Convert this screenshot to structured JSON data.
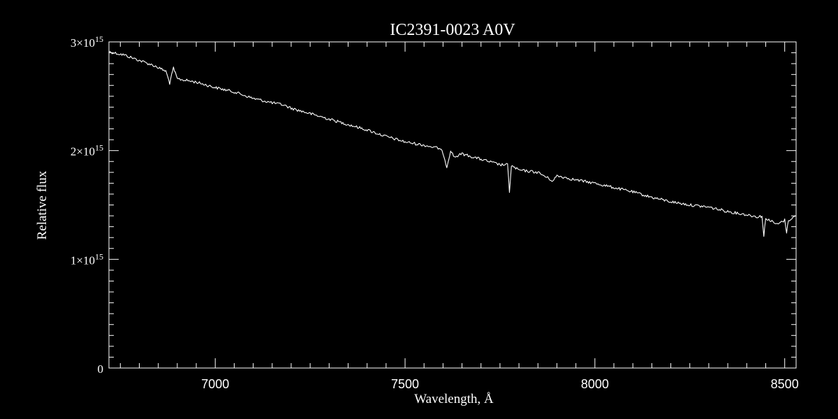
{
  "chart_data": {
    "type": "line",
    "title": "IC2391-0023  A0V",
    "xlabel": "Wavelength, Å",
    "ylabel": "Relative flux",
    "xlim": [
      6720,
      8530
    ],
    "ylim": [
      0,
      3000000000000000.0
    ],
    "xticks": [
      {
        "value": 7000,
        "label": "7000"
      },
      {
        "value": 7500,
        "label": "7500"
      },
      {
        "value": 8000,
        "label": "8000"
      },
      {
        "value": 8500,
        "label": "8500"
      }
    ],
    "yticks": [
      {
        "value": 0,
        "label": "0",
        "mantissa": "",
        "exponent": ""
      },
      {
        "value": 1000000000000000.0,
        "label": "1×10^15",
        "mantissa": "1×10",
        "exponent": "15"
      },
      {
        "value": 2000000000000000.0,
        "label": "2×10^15",
        "mantissa": "2×10",
        "exponent": "15"
      },
      {
        "value": 3000000000000000.0,
        "label": "3×10^15",
        "mantissa": "3×10",
        "exponent": "15"
      }
    ],
    "series": [
      {
        "color": "#ffffff",
        "x": [
          6720,
          6760,
          6800,
          6840,
          6870,
          6880,
          6890,
          6900,
          6950,
          7000,
          7050,
          7100,
          7150,
          7180,
          7200,
          7250,
          7300,
          7350,
          7400,
          7450,
          7500,
          7550,
          7590,
          7600,
          7610,
          7620,
          7630,
          7650,
          7700,
          7750,
          7770,
          7775,
          7780,
          7800,
          7850,
          7890,
          7900,
          7950,
          8000,
          8050,
          8100,
          8150,
          8200,
          8250,
          8300,
          8350,
          8400,
          8430,
          8440,
          8445,
          8450,
          8480,
          8500,
          8505,
          8510,
          8530
        ],
        "y": [
          2910000000000000.0,
          2880000000000000.0,
          2830000000000000.0,
          2780000000000000.0,
          2730000000000000.0,
          2620000000000000.0,
          2760000000000000.0,
          2660000000000000.0,
          2630000000000000.0,
          2580000000000000.0,
          2540000000000000.0,
          2480000000000000.0,
          2440000000000000.0,
          2420000000000000.0,
          2390000000000000.0,
          2340000000000000.0,
          2290000000000000.0,
          2240000000000000.0,
          2190000000000000.0,
          2130000000000000.0,
          2080000000000000.0,
          2050000000000000.0,
          2020000000000000.0,
          1980000000000000.0,
          1850000000000000.0,
          2000000000000000.0,
          1940000000000000.0,
          1970000000000000.0,
          1920000000000000.0,
          1870000000000000.0,
          1870000000000000.0,
          1620000000000000.0,
          1860000000000000.0,
          1820000000000000.0,
          1800000000000000.0,
          1720000000000000.0,
          1770000000000000.0,
          1730000000000000.0,
          1700000000000000.0,
          1660000000000000.0,
          1620000000000000.0,
          1570000000000000.0,
          1530000000000000.0,
          1500000000000000.0,
          1480000000000000.0,
          1440000000000000.0,
          1410000000000000.0,
          1390000000000000.0,
          1400000000000000.0,
          1210000000000000.0,
          1380000000000000.0,
          1320000000000000.0,
          1360000000000000.0,
          1250000000000000.0,
          1360000000000000.0,
          1400000000000000.0
        ]
      }
    ],
    "grid": false,
    "legend": "none",
    "minor_ticks": true
  }
}
